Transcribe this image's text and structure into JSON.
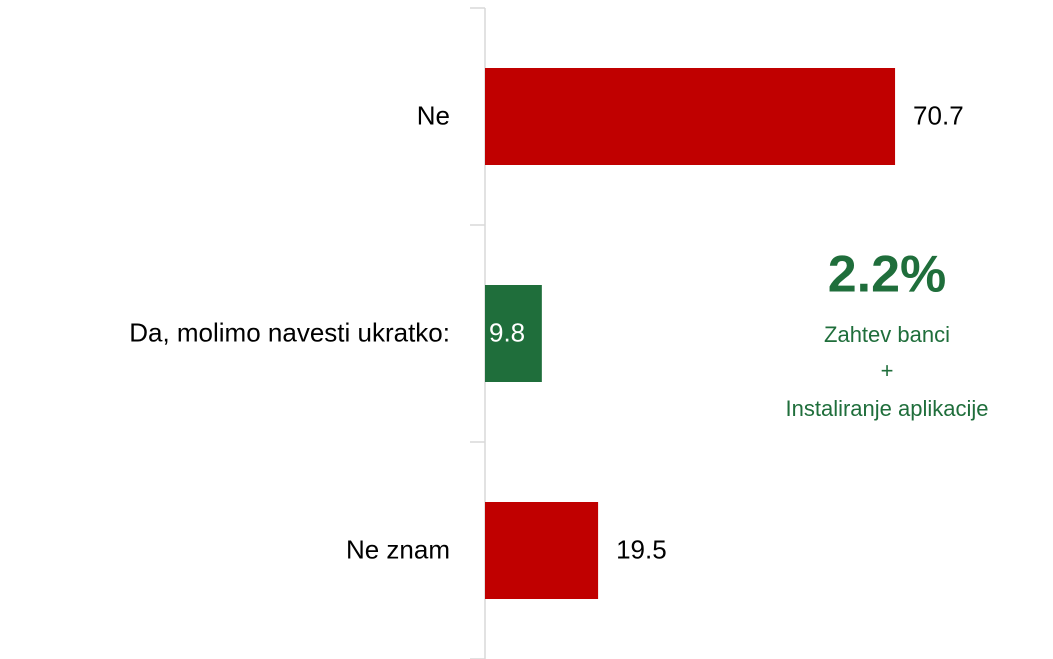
{
  "chart_data": {
    "type": "barh",
    "categories": [
      "Ne",
      "Da, molimo navesti ukratko:",
      "Ne znam"
    ],
    "values": [
      70.7,
      9.8,
      19.5
    ],
    "colors": [
      "#c00000",
      "#1f6e3b",
      "#c00000"
    ],
    "annotation": {
      "headline": "2.2%",
      "lines": [
        "Zahtev banci",
        "+",
        "Instaliranje aplikacije"
      ],
      "color": "#1f6e3b"
    }
  }
}
